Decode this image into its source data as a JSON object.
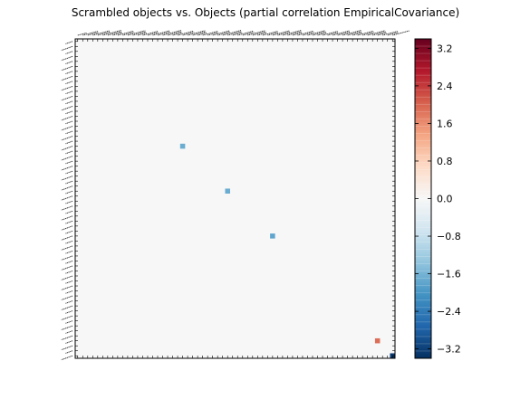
{
  "chart_data": {
    "type": "heatmap",
    "title": "Scrambled objects vs. Objects (partial correlation EmpiricalCovariance)",
    "xlabel": "",
    "ylabel": "",
    "colormap": "RdBu_r",
    "background_color": "#f7f7f7",
    "matrix_size": 64,
    "value_range": [
      -3.4,
      3.4
    ],
    "colorbar_ticks": [
      "3.2",
      "2.4",
      "1.6",
      "0.8",
      "0.0",
      "−0.8",
      "−1.6",
      "−2.4",
      "−3.2"
    ],
    "colorbar_tick_values": [
      3.2,
      2.4,
      1.6,
      0.8,
      0.0,
      -0.8,
      -1.6,
      -2.4,
      -3.2
    ],
    "nonzero_cells": [
      {
        "row": 21,
        "col": 21,
        "value": -1.7
      },
      {
        "row": 30,
        "col": 30,
        "value": -1.7
      },
      {
        "row": 39,
        "col": 39,
        "value": -1.8
      },
      {
        "row": 60,
        "col": 60,
        "value": 1.9
      },
      {
        "row": 63,
        "col": 63,
        "value": -3.3
      }
    ]
  }
}
